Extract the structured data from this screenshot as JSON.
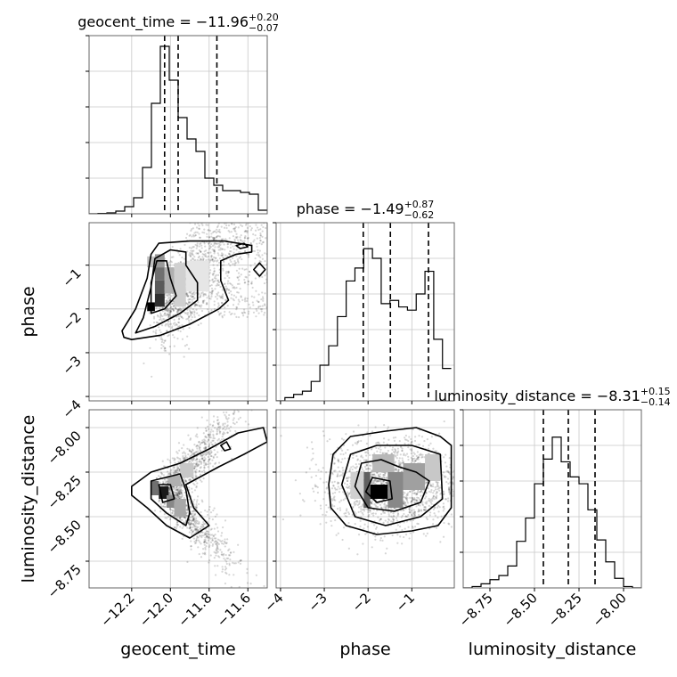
{
  "chart_data": {
    "type": "corner",
    "params": [
      "geocent_time",
      "phase",
      "luminosity_distance"
    ],
    "axes": {
      "geocent_time": {
        "label": "geocent_time",
        "range": [
          -12.42,
          -11.5
        ],
        "ticks": [
          -12.2,
          -12.0,
          -11.8,
          -11.6
        ],
        "tick_labels": [
          "−12.2",
          "−12.0",
          "−11.8",
          "−11.6"
        ]
      },
      "phase": {
        "label": "phase",
        "range": [
          -4.1,
          -0.03
        ],
        "ticks": [
          -4,
          -3,
          -2,
          -1
        ],
        "tick_labels": [
          "−4",
          "−3",
          "−2",
          "−1"
        ]
      },
      "luminosity_distance": {
        "label": "luminosity_distance",
        "range": [
          -8.9,
          -7.9
        ],
        "ticks": [
          -8.75,
          -8.5,
          -8.25,
          -8.0
        ],
        "tick_labels": [
          "−8.75",
          "−8.50",
          "−8.25",
          "−8.00"
        ]
      }
    },
    "titles": [
      {
        "param": "geocent_time",
        "prefix": "geocent_time = −11.96",
        "upper": "+0.20",
        "lower": "−0.07"
      },
      {
        "param": "phase",
        "prefix": "phase = −1.49",
        "upper": "+0.87",
        "lower": "−0.62"
      },
      {
        "param": "luminosity_distance",
        "prefix": "luminosity_distance = −8.31",
        "upper": "+0.15",
        "lower": "−0.14"
      }
    ],
    "histograms": {
      "geocent_time": {
        "edges": [
          -12.42,
          -12.374,
          -12.328,
          -12.282,
          -12.236,
          -12.19,
          -12.144,
          -12.098,
          -12.052,
          -12.006,
          -11.96,
          -11.914,
          -11.868,
          -11.822,
          -11.776,
          -11.73,
          -11.684,
          -11.638,
          -11.592,
          -11.546,
          -11.5
        ],
        "counts": [
          0,
          0.2,
          0.5,
          1.5,
          4,
          9,
          26,
          62,
          94,
          75,
          54,
          42,
          35,
          20,
          16,
          13,
          13,
          12,
          11,
          2
        ],
        "quantiles": [
          -12.03,
          -11.96,
          -11.76
        ],
        "ymax": 100
      },
      "phase": {
        "edges": [
          -4.1,
          -3.9,
          -3.7,
          -3.5,
          -3.3,
          -3.1,
          -2.9,
          -2.7,
          -2.5,
          -2.3,
          -2.1,
          -1.9,
          -1.7,
          -1.5,
          -1.3,
          -1.1,
          -0.9,
          -0.7,
          -0.5,
          -0.3,
          -0.1
        ],
        "counts": [
          0,
          1,
          2,
          3,
          6,
          11,
          17,
          26,
          37,
          41,
          47,
          44,
          30,
          31,
          29,
          28,
          33,
          40,
          19,
          10
        ],
        "quantiles": [
          -2.11,
          -1.49,
          -0.62
        ],
        "ymax": 55
      },
      "luminosity_distance": {
        "edges": [
          -8.9,
          -8.85,
          -8.8,
          -8.75,
          -8.7,
          -8.65,
          -8.6,
          -8.55,
          -8.5,
          -8.45,
          -8.4,
          -8.35,
          -8.3,
          -8.25,
          -8.2,
          -8.15,
          -8.1,
          -8.05,
          -8.0,
          -7.95,
          -7.9
        ],
        "counts": [
          0,
          1,
          3,
          6,
          9,
          16,
          34,
          51,
          76,
          94,
          110,
          92,
          81,
          76,
          57,
          35,
          19,
          7,
          1,
          0
        ],
        "quantiles": [
          -8.45,
          -8.31,
          -8.16
        ],
        "ymax": 130
      }
    },
    "show_grid": true
  }
}
